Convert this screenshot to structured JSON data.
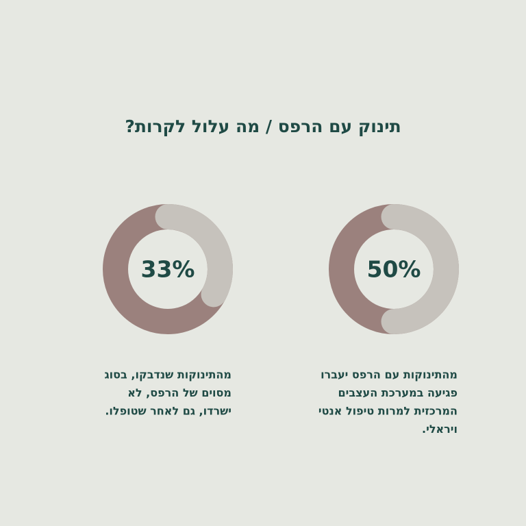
{
  "title": "תינוק עם הרפס / מה עלול לקרות?",
  "chart_data": [
    {
      "type": "donut",
      "values": [
        50
      ],
      "value_labels": [
        "50%"
      ],
      "color": "#c6c2bc",
      "track_color": "#9b817d",
      "lines": [
        "מהתינוקות עם הרפס יעברו",
        "פגיעה במערכת העצבים",
        "המרכזית למרות טיפול אנטי",
        "ויראלי."
      ]
    },
    {
      "type": "donut",
      "values": [
        33
      ],
      "value_labels": [
        "33%"
      ],
      "color": "#c6c2bc",
      "track_color": "#9b817d",
      "lines": [
        "מהתינוקות שנדבקו, בסוג",
        "מסוים של הרפס, לא",
        "ישרדו, גם לאחר שטופלו."
      ]
    }
  ]
}
